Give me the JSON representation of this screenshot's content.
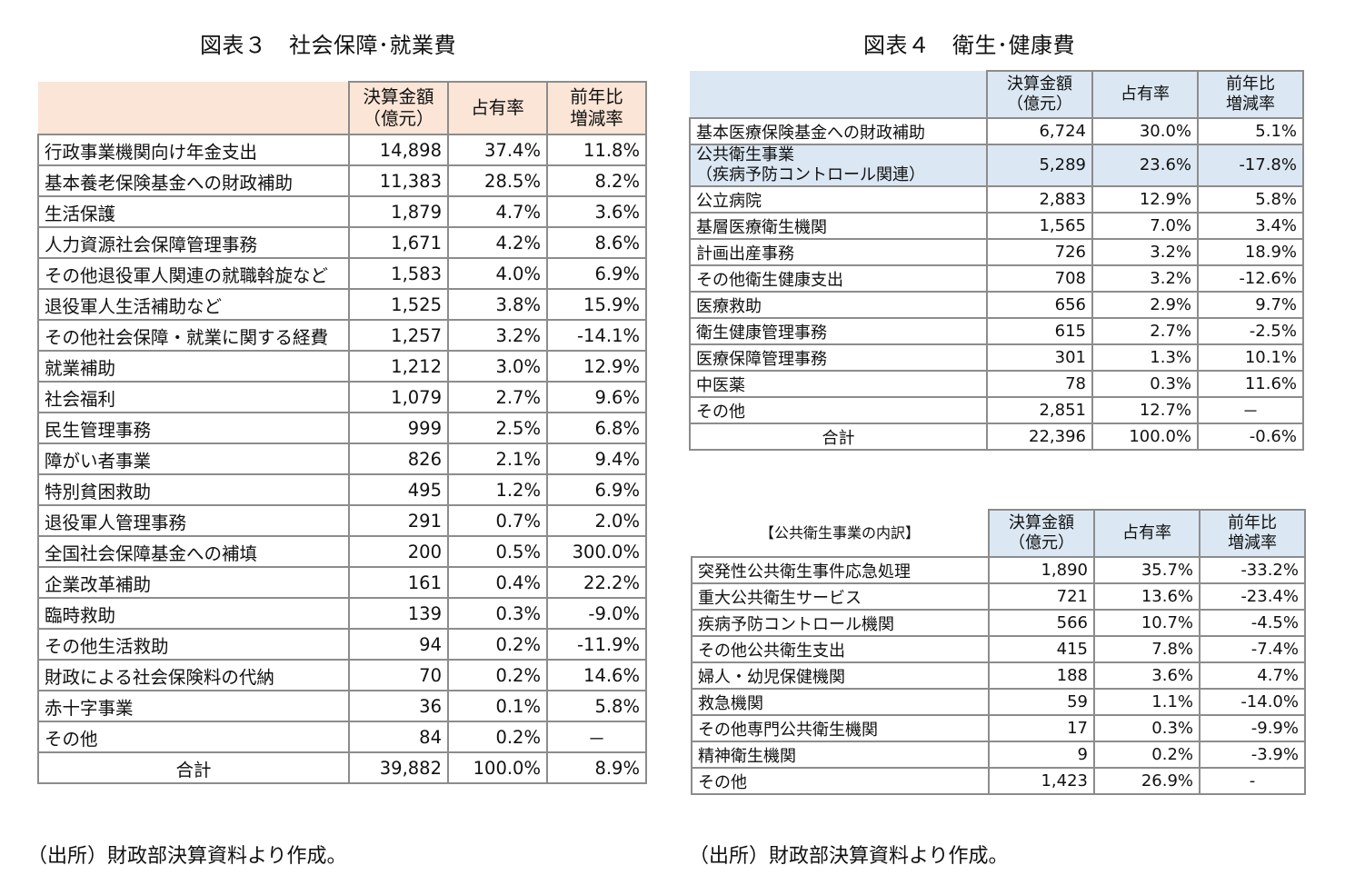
{
  "fig3": {
    "title": "図表３　社会保障･就業費",
    "headers": [
      "決算金額\n（億元）",
      "占有率",
      "前年比\n増減率"
    ],
    "rows": [
      [
        "行政事業機関向け年金支出",
        "14,898",
        "37.4%",
        "11.8%"
      ],
      [
        "基本養老保険基金への財政補助",
        "11,383",
        "28.5%",
        "8.2%"
      ],
      [
        "生活保護",
        "1,879",
        "4.7%",
        "3.6%"
      ],
      [
        "人力資源社会保障管理事務",
        "1,671",
        "4.2%",
        "8.6%"
      ],
      [
        "その他退役軍人関連の就職斡旋など",
        "1,583",
        "4.0%",
        "6.9%"
      ],
      [
        "退役軍人生活補助など",
        "1,525",
        "3.8%",
        "15.9%"
      ],
      [
        "その他社会保障・就業に関する経費",
        "1,257",
        "3.2%",
        "-14.1%"
      ],
      [
        "就業補助",
        "1,212",
        "3.0%",
        "12.9%"
      ],
      [
        "社会福利",
        "1,079",
        "2.7%",
        "9.6%"
      ],
      [
        "民生管理事務",
        "999",
        "2.5%",
        "6.8%"
      ],
      [
        "障がい者事業",
        "826",
        "2.1%",
        "9.4%"
      ],
      [
        "特別貧困救助",
        "495",
        "1.2%",
        "6.9%"
      ],
      [
        "退役軍人管理事務",
        "291",
        "0.7%",
        "2.0%"
      ],
      [
        "全国社会保障基金への補填",
        "200",
        "0.5%",
        "300.0%"
      ],
      [
        "企業改革補助",
        "161",
        "0.4%",
        "22.2%"
      ],
      [
        "臨時救助",
        "139",
        "0.3%",
        "-9.0%"
      ],
      [
        "その他生活救助",
        "94",
        "0.2%",
        "-11.9%"
      ],
      [
        "財政による社会保険料の代納",
        "70",
        "0.2%",
        "14.6%"
      ],
      [
        "赤十字事業",
        "36",
        "0.1%",
        "5.8%"
      ],
      [
        "その他",
        "84",
        "0.2%",
        "－"
      ]
    ],
    "total": [
      "合計",
      "39,882",
      "100.0%",
      "8.9%"
    ],
    "source": "（出所）財政部決算資料より作成。"
  },
  "fig4": {
    "title": "図表４　衛生･健康費",
    "headers": [
      "決算金額\n（億元）",
      "占有率",
      "前年比\n増減率"
    ],
    "rows": [
      [
        "基本医療保険基金への財政補助",
        "6,724",
        "30.0%",
        "5.1%"
      ],
      [
        "公共衛生事業\n（疾病予防コントロール関連）",
        "5,289",
        "23.6%",
        "-17.8%"
      ],
      [
        "公立病院",
        "2,883",
        "12.9%",
        "5.8%"
      ],
      [
        "基層医療衛生機関",
        "1,565",
        "7.0%",
        "3.4%"
      ],
      [
        "計画出産事務",
        "726",
        "3.2%",
        "18.9%"
      ],
      [
        "その他衛生健康支出",
        "708",
        "3.2%",
        "-12.6%"
      ],
      [
        "医療救助",
        "656",
        "2.9%",
        "9.7%"
      ],
      [
        "衛生健康管理事務",
        "615",
        "2.7%",
        "-2.5%"
      ],
      [
        "医療保障管理事務",
        "301",
        "1.3%",
        "10.1%"
      ],
      [
        "中医薬",
        "78",
        "0.3%",
        "11.6%"
      ],
      [
        "その他",
        "2,851",
        "12.7%",
        "－"
      ]
    ],
    "total": [
      "合計",
      "22,396",
      "100.0%",
      "-0.6%"
    ],
    "highlight_row": 1
  },
  "breakdown": {
    "caption": "【公共衛生事業の内訳】",
    "headers": [
      "決算金額\n（億元）",
      "占有率",
      "前年比\n増減率"
    ],
    "rows": [
      [
        "突発性公共衛生事件応急処理",
        "1,890",
        "35.7%",
        "-33.2%"
      ],
      [
        "重大公共衛生サービス",
        "721",
        "13.6%",
        "-23.4%"
      ],
      [
        "疾病予防コントロール機関",
        "566",
        "10.7%",
        "-4.5%"
      ],
      [
        "その他公共衛生支出",
        "415",
        "7.8%",
        "-7.4%"
      ],
      [
        "婦人・幼児保健機関",
        "188",
        "3.6%",
        "4.7%"
      ],
      [
        "救急機関",
        "59",
        "1.1%",
        "-14.0%"
      ],
      [
        "その他専門公共衛生機関",
        "17",
        "0.3%",
        "-9.9%"
      ],
      [
        "精神衛生機関",
        "9",
        "0.2%",
        "-3.9%"
      ],
      [
        "その他",
        "1,423",
        "26.9%",
        "-"
      ]
    ],
    "source": "（出所）財政部決算資料より作成。"
  },
  "colors": {
    "fig3_header_bg": "#fbe5d6",
    "fig4_header_bg": "#dbe7f3",
    "border": "#8c8c8c"
  }
}
